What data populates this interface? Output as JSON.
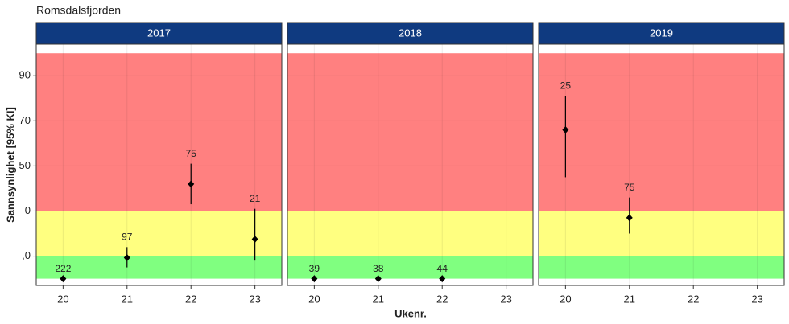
{
  "chart_data": {
    "type": "errorbar",
    "title": "Romsdalsfjorden",
    "xlabel": "Ukenr.",
    "ylabel": "Sannsynlighet   [95% KI]",
    "xlim": [
      19.58,
      23.42
    ],
    "xticks": [
      20,
      21,
      22,
      23
    ],
    "ylim": [
      -3,
      104
    ],
    "yticks": [
      {
        "value": 10,
        "label": ",0"
      },
      {
        "value": 30,
        "label": "0"
      },
      50,
      70,
      90
    ],
    "grid": true,
    "strip_color": "#0f3a80",
    "bands": [
      {
        "from": 0,
        "to": 10,
        "color": "#80ff80"
      },
      {
        "from": 10,
        "to": 30,
        "color": "#ffff80"
      },
      {
        "from": 30,
        "to": 100,
        "color": "#ff8080"
      }
    ],
    "panels": [
      {
        "title": "2017",
        "x": [
          20,
          21,
          22,
          23
        ],
        "values": [
          0,
          9.3,
          42,
          17.5
        ],
        "lower": [
          0,
          5,
          33,
          8
        ],
        "upper": [
          0,
          14,
          51,
          31
        ],
        "labels": [
          "222",
          "97",
          "75",
          "21"
        ]
      },
      {
        "title": "2018",
        "x": [
          20,
          21,
          22
        ],
        "values": [
          0,
          0,
          0
        ],
        "lower": [
          0,
          0,
          0
        ],
        "upper": [
          0,
          0,
          0
        ],
        "labels": [
          "39",
          "38",
          "44"
        ]
      },
      {
        "title": "2019",
        "x": [
          20,
          21
        ],
        "values": [
          66,
          27
        ],
        "lower": [
          45,
          20
        ],
        "upper": [
          81,
          36
        ],
        "labels": [
          "25",
          "75"
        ]
      }
    ]
  }
}
